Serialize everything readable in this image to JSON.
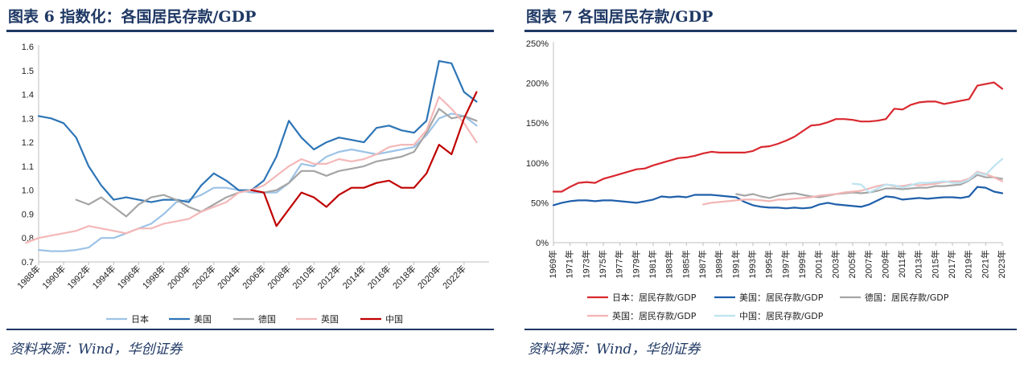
{
  "chart_data": [
    {
      "type": "line",
      "title": "图表 6 指数化：各国居民存款/GDP",
      "source": "资料来源：Wind，华创证券",
      "xlabel": "",
      "ylabel": "",
      "ylim": [
        0.7,
        1.6
      ],
      "yticks": [
        "0.7",
        "0.8",
        "0.9",
        "1.0",
        "1.1",
        "1.2",
        "1.3",
        "1.4",
        "1.5",
        "1.6"
      ],
      "xlim": [
        1988,
        2024
      ],
      "xticks": [
        "1988年",
        "1990年",
        "1992年",
        "1994年",
        "1996年",
        "1998年",
        "2000年",
        "2002年",
        "2004年",
        "2006年",
        "2008年",
        "2010年",
        "2012年",
        "2014年",
        "2016年",
        "2018年",
        "2020年",
        "2022年"
      ],
      "legend_position": "bottom",
      "series": [
        {
          "name": "日本",
          "color": "#9dc3e6",
          "x": [
            1988,
            1989,
            1990,
            1991,
            1992,
            1993,
            1994,
            1995,
            1996,
            1997,
            1998,
            1999,
            2000,
            2001,
            2002,
            2003,
            2004,
            2005,
            2006,
            2007,
            2008,
            2009,
            2010,
            2011,
            2012,
            2013,
            2014,
            2015,
            2016,
            2017,
            2018,
            2019,
            2020,
            2021,
            2022,
            2023
          ],
          "values": [
            0.75,
            0.745,
            0.745,
            0.75,
            0.76,
            0.8,
            0.8,
            0.82,
            0.84,
            0.86,
            0.9,
            0.95,
            0.96,
            0.98,
            1.01,
            1.01,
            1.0,
            0.99,
            0.99,
            0.99,
            1.03,
            1.11,
            1.1,
            1.14,
            1.16,
            1.17,
            1.16,
            1.15,
            1.16,
            1.17,
            1.18,
            1.23,
            1.3,
            1.32,
            1.31,
            1.27
          ]
        },
        {
          "name": "美国",
          "color": "#2e75b6",
          "x": [
            1988,
            1989,
            1990,
            1991,
            1992,
            1993,
            1994,
            1995,
            1996,
            1997,
            1998,
            1999,
            2000,
            2001,
            2002,
            2003,
            2004,
            2005,
            2006,
            2007,
            2008,
            2009,
            2010,
            2011,
            2012,
            2013,
            2014,
            2015,
            2016,
            2017,
            2018,
            2019,
            2020,
            2021,
            2022,
            2023
          ],
          "values": [
            1.31,
            1.3,
            1.28,
            1.22,
            1.1,
            1.02,
            0.96,
            0.97,
            0.96,
            0.95,
            0.96,
            0.96,
            0.95,
            1.02,
            1.07,
            1.04,
            1.0,
            1.0,
            1.04,
            1.14,
            1.29,
            1.22,
            1.17,
            1.2,
            1.22,
            1.21,
            1.2,
            1.26,
            1.27,
            1.25,
            1.24,
            1.29,
            1.54,
            1.53,
            1.41,
            1.37
          ]
        },
        {
          "name": "德国",
          "color": "#a5a5a5",
          "x": [
            1991,
            1992,
            1993,
            1994,
            1995,
            1996,
            1997,
            1998,
            1999,
            2000,
            2001,
            2002,
            2003,
            2004,
            2005,
            2006,
            2007,
            2008,
            2009,
            2010,
            2011,
            2012,
            2013,
            2014,
            2015,
            2016,
            2017,
            2018,
            2019,
            2020,
            2021,
            2022,
            2023
          ],
          "values": [
            0.96,
            0.94,
            0.97,
            0.93,
            0.89,
            0.94,
            0.97,
            0.98,
            0.96,
            0.93,
            0.91,
            0.94,
            0.97,
            0.99,
            1.0,
            0.99,
            1.0,
            1.03,
            1.08,
            1.08,
            1.06,
            1.08,
            1.09,
            1.1,
            1.12,
            1.13,
            1.14,
            1.16,
            1.24,
            1.34,
            1.3,
            1.31,
            1.29
          ]
        },
        {
          "name": "英国",
          "color": "#f4b8b8",
          "x": [
            1987,
            1988,
            1989,
            1990,
            1991,
            1992,
            1993,
            1994,
            1995,
            1996,
            1997,
            1998,
            1999,
            2000,
            2001,
            2002,
            2003,
            2004,
            2005,
            2006,
            2007,
            2008,
            2009,
            2010,
            2011,
            2012,
            2013,
            2014,
            2015,
            2016,
            2017,
            2018,
            2019,
            2020,
            2021,
            2022,
            2023
          ],
          "values": [
            0.78,
            0.8,
            0.81,
            0.82,
            0.83,
            0.85,
            0.84,
            0.83,
            0.82,
            0.84,
            0.84,
            0.86,
            0.87,
            0.88,
            0.91,
            0.93,
            0.95,
            0.99,
            1.0,
            1.02,
            1.06,
            1.1,
            1.13,
            1.11,
            1.11,
            1.13,
            1.12,
            1.13,
            1.15,
            1.18,
            1.19,
            1.19,
            1.25,
            1.39,
            1.34,
            1.28,
            1.2
          ]
        },
        {
          "name": "中国",
          "color": "#c00000",
          "x": [
            2005,
            2006,
            2007,
            2008,
            2009,
            2010,
            2011,
            2012,
            2013,
            2014,
            2015,
            2016,
            2017,
            2018,
            2019,
            2020,
            2021,
            2022,
            2023
          ],
          "values": [
            1.0,
            0.99,
            0.85,
            0.92,
            0.99,
            0.97,
            0.93,
            0.98,
            1.01,
            1.01,
            1.03,
            1.04,
            1.01,
            1.01,
            1.07,
            1.19,
            1.15,
            1.3,
            1.41
          ]
        }
      ]
    },
    {
      "type": "line",
      "title": "图表 7 各国居民存款/GDP",
      "source": "资料来源：Wind，华创证券",
      "xlabel": "",
      "ylabel": "",
      "ylim": [
        0,
        250
      ],
      "yticks": [
        "0%",
        "50%",
        "100%",
        "150%",
        "200%",
        "250%"
      ],
      "xlim": [
        1969,
        2023
      ],
      "xticks": [
        "1969年",
        "1971年",
        "1973年",
        "1975年",
        "1977年",
        "1979年",
        "1981年",
        "1983年",
        "1985年",
        "1987年",
        "1989年",
        "1991年",
        "1993年",
        "1995年",
        "1997年",
        "1999年",
        "2001年",
        "2003年",
        "2005年",
        "2007年",
        "2009年",
        "2011年",
        "2013年",
        "2015年",
        "2017年",
        "2019年",
        "2021年",
        "2023年"
      ],
      "legend_position": "bottom",
      "series": [
        {
          "name": "日本：居民存款/GDP",
          "color": "#d9282f",
          "x": [
            1969,
            1970,
            1971,
            1972,
            1973,
            1974,
            1975,
            1976,
            1977,
            1978,
            1979,
            1980,
            1981,
            1982,
            1983,
            1984,
            1985,
            1986,
            1987,
            1988,
            1989,
            1990,
            1991,
            1992,
            1993,
            1994,
            1995,
            1996,
            1997,
            1998,
            1999,
            2000,
            2001,
            2002,
            2003,
            2004,
            2005,
            2006,
            2007,
            2008,
            2009,
            2010,
            2011,
            2012,
            2013,
            2014,
            2015,
            2016,
            2017,
            2018,
            2019,
            2020,
            2021,
            2022,
            2023
          ],
          "values": [
            64,
            64,
            70,
            75,
            76,
            75,
            80,
            83,
            86,
            89,
            92,
            93,
            97,
            100,
            103,
            106,
            107,
            109,
            112,
            114,
            113,
            113,
            113,
            113,
            115,
            120,
            121,
            124,
            128,
            133,
            140,
            147,
            148,
            151,
            155,
            155,
            154,
            152,
            152,
            153,
            155,
            168,
            167,
            173,
            176,
            177,
            177,
            174,
            176,
            178,
            180,
            197,
            199,
            201,
            193
          ]
        },
        {
          "name": "美国：居民存款/GDP",
          "color": "#1f5faa",
          "x": [
            1969,
            1970,
            1971,
            1972,
            1973,
            1974,
            1975,
            1976,
            1977,
            1978,
            1979,
            1980,
            1981,
            1982,
            1983,
            1984,
            1985,
            1986,
            1987,
            1988,
            1989,
            1990,
            1991,
            1992,
            1993,
            1994,
            1995,
            1996,
            1997,
            1998,
            1999,
            2000,
            2001,
            2002,
            2003,
            2004,
            2005,
            2006,
            2007,
            2008,
            2009,
            2010,
            2011,
            2012,
            2013,
            2014,
            2015,
            2016,
            2017,
            2018,
            2019,
            2020,
            2021,
            2022,
            2023
          ],
          "values": [
            47,
            50,
            52,
            53,
            53,
            52,
            53,
            53,
            52,
            51,
            50,
            52,
            54,
            58,
            57,
            58,
            57,
            60,
            60,
            60,
            59,
            58,
            57,
            51,
            47,
            45,
            44,
            44,
            43,
            44,
            43,
            44,
            48,
            50,
            48,
            47,
            46,
            45,
            48,
            53,
            58,
            57,
            54,
            55,
            56,
            55,
            56,
            57,
            57,
            56,
            58,
            70,
            69,
            64,
            62
          ]
        },
        {
          "name": "德国：居民存款/GDP",
          "color": "#a6a6a6",
          "x": [
            1991,
            1992,
            1993,
            1994,
            1995,
            1996,
            1997,
            1998,
            1999,
            2000,
            2001,
            2002,
            2003,
            2004,
            2005,
            2006,
            2007,
            2008,
            2009,
            2010,
            2011,
            2012,
            2013,
            2014,
            2015,
            2016,
            2017,
            2018,
            2019,
            2020,
            2021,
            2022,
            2023
          ],
          "values": [
            61,
            59,
            61,
            58,
            56,
            59,
            61,
            62,
            60,
            58,
            57,
            59,
            61,
            62,
            63,
            62,
            63,
            65,
            68,
            68,
            67,
            68,
            69,
            69,
            71,
            71,
            72,
            73,
            78,
            85,
            82,
            82,
            80
          ]
        },
        {
          "name": "英国：居民存款/GDP",
          "color": "#f2b5b5",
          "x": [
            1987,
            1988,
            1989,
            1990,
            1991,
            1992,
            1993,
            1994,
            1995,
            1996,
            1997,
            1998,
            1999,
            2000,
            2001,
            2002,
            2003,
            2004,
            2005,
            2006,
            2007,
            2008,
            2009,
            2010,
            2011,
            2012,
            2013,
            2014,
            2015,
            2016,
            2017,
            2018,
            2019,
            2020,
            2021,
            2022,
            2023
          ],
          "values": [
            48,
            50,
            51,
            52,
            53,
            54,
            54,
            53,
            52,
            54,
            54,
            55,
            56,
            57,
            59,
            60,
            61,
            63,
            64,
            65,
            68,
            71,
            73,
            71,
            71,
            73,
            72,
            73,
            74,
            76,
            77,
            77,
            80,
            89,
            86,
            82,
            77
          ]
        },
        {
          "name": "中国：居民存款/GDP",
          "color": "#bde3f0",
          "x": [
            2005,
            2006,
            2007,
            2008,
            2009,
            2010,
            2011,
            2012,
            2013,
            2014,
            2015,
            2016,
            2017,
            2018,
            2019,
            2020,
            2021,
            2022,
            2023
          ],
          "values": [
            74,
            73,
            63,
            68,
            73,
            72,
            69,
            72,
            75,
            75,
            76,
            77,
            75,
            75,
            79,
            88,
            85,
            96,
            105
          ]
        }
      ]
    }
  ]
}
